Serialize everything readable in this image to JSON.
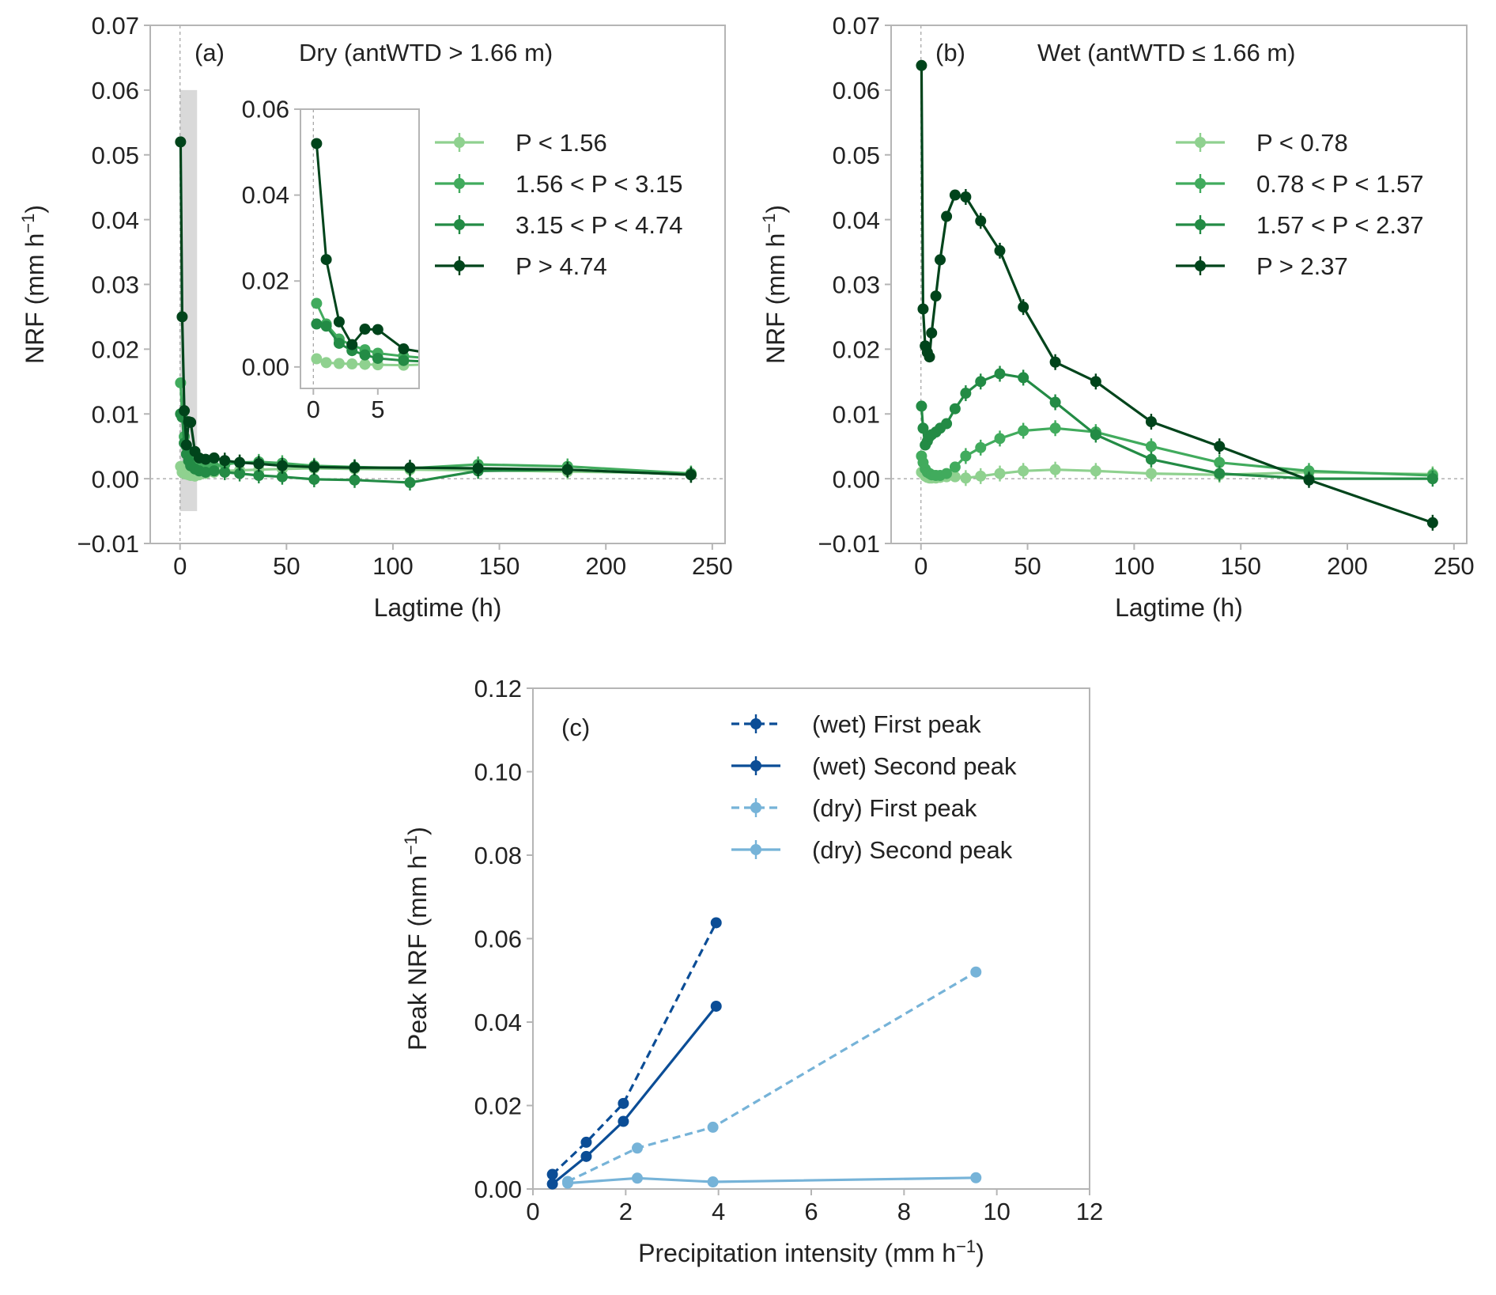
{
  "chart_data": [
    {
      "id": "a",
      "type": "line",
      "panel_label": "(a)",
      "title": "Dry (antWTD > 1.66 m)",
      "xlabel": "Lagtime (h)",
      "ylabel": "NRF (mm h",
      "ylabel_exp": "−1",
      "ylabel_close": ")",
      "xlim": [
        -14,
        256
      ],
      "ylim": [
        -0.01,
        0.07
      ],
      "xticks": [
        0,
        50,
        100,
        150,
        200,
        250
      ],
      "xtick_labels": [
        "0",
        "50",
        "100",
        "150",
        "200",
        "250"
      ],
      "yticks": [
        -0.01,
        0,
        0.01,
        0.02,
        0.03,
        0.04,
        0.05,
        0.06,
        0.07
      ],
      "ytick_labels": [
        "−0.01",
        "0.00",
        "0.01",
        "0.02",
        "0.03",
        "0.04",
        "0.05",
        "0.06",
        "0.07"
      ],
      "grid": false,
      "zero_line": true,
      "legend_position": "upper right",
      "shaded_region": {
        "x": [
          0,
          8
        ],
        "y": [
          -0.005,
          0.06
        ],
        "color": "#d9d9d9"
      },
      "series": [
        {
          "name": "P < 1.56",
          "color": "#8fd18f",
          "x": [
            0.25,
            1,
            2,
            3,
            4,
            5,
            7,
            9,
            12,
            16,
            21,
            28,
            37,
            48,
            63,
            82,
            108,
            140,
            182,
            240
          ],
          "y": [
            0.0019,
            0.001,
            0.0008,
            0.0007,
            0.0006,
            0.0005,
            0.0004,
            0.0006,
            0.0008,
            0.001,
            0.0012,
            0.0013,
            0.0014,
            0.0015,
            0.0016,
            0.0015,
            0.0014,
            0.0013,
            0.0011,
            0.0008
          ]
        },
        {
          "name": "1.56 < P < 3.15",
          "color": "#41ab5d",
          "x": [
            0.25,
            1,
            2,
            3,
            4,
            5,
            7,
            9,
            12,
            16,
            21,
            28,
            37,
            48,
            63,
            82,
            108,
            140,
            182,
            240
          ],
          "y": [
            0.0148,
            0.01,
            0.0065,
            0.005,
            0.004,
            0.0032,
            0.0025,
            0.002,
            0.0018,
            0.0019,
            0.0022,
            0.0025,
            0.0026,
            0.0024,
            0.002,
            0.0018,
            0.0016,
            0.0022,
            0.0019,
            0.0008
          ]
        },
        {
          "name": "3.15 < P < 4.74",
          "color": "#238b45",
          "x": [
            0.25,
            1,
            2,
            3,
            4,
            5,
            7,
            9,
            12,
            16,
            21,
            28,
            37,
            48,
            63,
            82,
            108,
            140,
            182,
            240
          ],
          "y": [
            0.01,
            0.0095,
            0.0055,
            0.0038,
            0.0028,
            0.002,
            0.0015,
            0.0012,
            0.001,
            0.0012,
            0.001,
            0.0008,
            0.0005,
            0.0003,
            -0.0001,
            -0.0002,
            -0.0006,
            0.0012,
            0.0014,
            0.0006
          ]
        },
        {
          "name": "P > 4.74",
          "color": "#00441b",
          "x": [
            0.25,
            1,
            2,
            3,
            4,
            5,
            7,
            9,
            12,
            16,
            21,
            28,
            37,
            48,
            63,
            82,
            108,
            140,
            182,
            240
          ],
          "y": [
            0.052,
            0.025,
            0.0105,
            0.0052,
            0.0088,
            0.0087,
            0.0042,
            0.0032,
            0.003,
            0.0032,
            0.0028,
            0.0025,
            0.0023,
            0.002,
            0.0018,
            0.0017,
            0.0017,
            0.0016,
            0.0014,
            0.0006
          ]
        }
      ],
      "inset": {
        "xlim": [
          -1,
          8.2
        ],
        "ylim": [
          -0.005,
          0.06
        ],
        "xticks": [
          0,
          5
        ],
        "xtick_labels": [
          "0",
          "5"
        ],
        "yticks": [
          0,
          0.02,
          0.04,
          0.06
        ],
        "ytick_labels": [
          "0.00",
          "0.02",
          "0.04",
          "0.06"
        ]
      }
    },
    {
      "id": "b",
      "type": "line",
      "panel_label": "(b)",
      "title": "Wet (antWTD ≤ 1.66 m)",
      "xlabel": "Lagtime (h)",
      "ylabel": "NRF (mm h",
      "ylabel_exp": "−1",
      "ylabel_close": ")",
      "xlim": [
        -14,
        256
      ],
      "ylim": [
        -0.01,
        0.07
      ],
      "xticks": [
        0,
        50,
        100,
        150,
        200,
        250
      ],
      "xtick_labels": [
        "0",
        "50",
        "100",
        "150",
        "200",
        "250"
      ],
      "yticks": [
        -0.01,
        0,
        0.01,
        0.02,
        0.03,
        0.04,
        0.05,
        0.06,
        0.07
      ],
      "ytick_labels": [
        "−0.01",
        "0.00",
        "0.01",
        "0.02",
        "0.03",
        "0.04",
        "0.05",
        "0.06",
        "0.07"
      ],
      "grid": false,
      "zero_line": true,
      "legend_position": "upper right",
      "series": [
        {
          "name": "P < 0.78",
          "color": "#8fd18f",
          "x": [
            0.25,
            1,
            2,
            3,
            4,
            5,
            7,
            9,
            12,
            16,
            21,
            28,
            37,
            48,
            63,
            82,
            108,
            140,
            182,
            240
          ],
          "y": [
            0.001,
            0.0008,
            0.0004,
            0.0002,
            0.0001,
            0.0001,
            0.0001,
            0.0002,
            0.0003,
            0.0003,
            0.0001,
            0.0004,
            0.0008,
            0.0012,
            0.0014,
            0.0012,
            0.0008,
            0.0006,
            0.001,
            0.0007
          ]
        },
        {
          "name": "0.78 < P < 1.57",
          "color": "#41ab5d",
          "x": [
            0.25,
            1,
            2,
            3,
            4,
            5,
            7,
            9,
            12,
            16,
            21,
            28,
            37,
            48,
            63,
            82,
            108,
            140,
            182,
            240
          ],
          "y": [
            0.0035,
            0.0025,
            0.0015,
            0.001,
            0.0008,
            0.0006,
            0.0005,
            0.0005,
            0.0008,
            0.0018,
            0.0035,
            0.0048,
            0.0062,
            0.0074,
            0.0078,
            0.0072,
            0.005,
            0.0025,
            0.0012,
            0.0005
          ]
        },
        {
          "name": "1.57 < P < 2.37",
          "color": "#238b45",
          "x": [
            0.25,
            1,
            2,
            3,
            4,
            5,
            7,
            9,
            12,
            16,
            21,
            28,
            37,
            48,
            63,
            82,
            108,
            140,
            182,
            240
          ],
          "y": [
            0.0112,
            0.0078,
            0.0052,
            0.0058,
            0.0065,
            0.0068,
            0.0072,
            0.0078,
            0.0085,
            0.0108,
            0.0132,
            0.015,
            0.0162,
            0.0156,
            0.0118,
            0.0068,
            0.003,
            0.0008,
            0.0,
            0.0
          ]
        },
        {
          "name": "P > 2.37",
          "color": "#00441b",
          "x": [
            0.25,
            1,
            2,
            3,
            4,
            5,
            7,
            9,
            12,
            16,
            21,
            28,
            37,
            48,
            63,
            82,
            108,
            140,
            182,
            240
          ],
          "y": [
            0.0638,
            0.0262,
            0.0205,
            0.0195,
            0.0188,
            0.0225,
            0.0282,
            0.0338,
            0.0405,
            0.0438,
            0.0435,
            0.0398,
            0.0352,
            0.0265,
            0.018,
            0.015,
            0.0088,
            0.005,
            -0.0002,
            -0.0068
          ]
        }
      ]
    },
    {
      "id": "c",
      "type": "line",
      "panel_label": "(c)",
      "xlabel": "Precipitation intensity (mm h",
      "xlabel_exp": "−1",
      "xlabel_close": ")",
      "ylabel": "Peak NRF (mm h",
      "ylabel_exp": "−1",
      "ylabel_close": ")",
      "xlim": [
        0,
        12
      ],
      "ylim": [
        0,
        0.12
      ],
      "xticks": [
        0,
        2,
        4,
        6,
        8,
        10,
        12
      ],
      "xtick_labels": [
        "0",
        "2",
        "4",
        "6",
        "8",
        "10",
        "12"
      ],
      "yticks": [
        0,
        0.02,
        0.04,
        0.06,
        0.08,
        0.1,
        0.12
      ],
      "ytick_labels": [
        "0.00",
        "0.02",
        "0.04",
        "0.06",
        "0.08",
        "0.10",
        "0.12"
      ],
      "grid": false,
      "legend_position": "upper center",
      "series": [
        {
          "name": "(wet) First peak",
          "color": "#0b4d96",
          "dashed": true,
          "x": [
            0.42,
            1.15,
            1.95,
            3.95
          ],
          "y": [
            0.0035,
            0.0112,
            0.0205,
            0.0638
          ]
        },
        {
          "name": "(wet) Second peak",
          "color": "#0b4d96",
          "dashed": false,
          "x": [
            0.42,
            1.15,
            1.95,
            3.95
          ],
          "y": [
            0.0012,
            0.0078,
            0.0162,
            0.0438
          ]
        },
        {
          "name": "(dry) First peak",
          "color": "#76b3d8",
          "dashed": true,
          "x": [
            0.75,
            2.25,
            3.88,
            9.55
          ],
          "y": [
            0.0018,
            0.0098,
            0.0148,
            0.052
          ]
        },
        {
          "name": "(dry) Second peak",
          "color": "#76b3d8",
          "dashed": false,
          "x": [
            0.75,
            2.25,
            3.88,
            9.55
          ],
          "y": [
            0.0014,
            0.0026,
            0.0017,
            0.0027
          ]
        }
      ]
    }
  ]
}
